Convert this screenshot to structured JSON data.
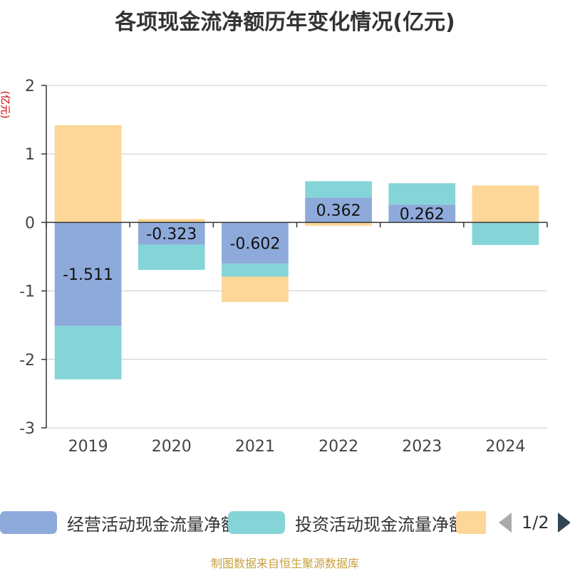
{
  "chart_data": {
    "type": "bar",
    "stacked": true,
    "title": "各项现金流净额历年变化情况(亿元)",
    "ylabel": "(亿元)",
    "categories": [
      "2019",
      "2020",
      "2021",
      "2022",
      "2023",
      "2024"
    ],
    "ylim": [
      -3,
      2
    ],
    "yticks": [
      2,
      1,
      0,
      -1,
      -2,
      -3
    ],
    "grid": true,
    "series": [
      {
        "name": "经营活动现金流量净额",
        "color": "#8eaadb",
        "values": [
          -1.511,
          -0.323,
          -0.602,
          0.362,
          0.262,
          0.0
        ],
        "labels": [
          "-1.511",
          "-0.323",
          "-0.602",
          "0.362",
          "0.262",
          ""
        ]
      },
      {
        "name": "投资活动现金流量净额",
        "color": "#85d5d8",
        "values": [
          -0.78,
          -0.37,
          -0.19,
          0.24,
          0.31,
          -0.33
        ]
      },
      {
        "name": "",
        "color": "#fcd798",
        "values": [
          1.42,
          0.05,
          -0.37,
          -0.05,
          0.0,
          0.54
        ]
      }
    ],
    "legend_position": "bottom"
  },
  "legend": {
    "items": [
      {
        "label": "经营活动现金流量净额",
        "color": "#8eaadb"
      },
      {
        "label": "投资活动现金流量净额",
        "color": "#85d5d8"
      },
      {
        "label": "",
        "color": "#fcd798"
      }
    ],
    "page": "1/2"
  },
  "source": "制图数据来自恒生聚源数据库"
}
